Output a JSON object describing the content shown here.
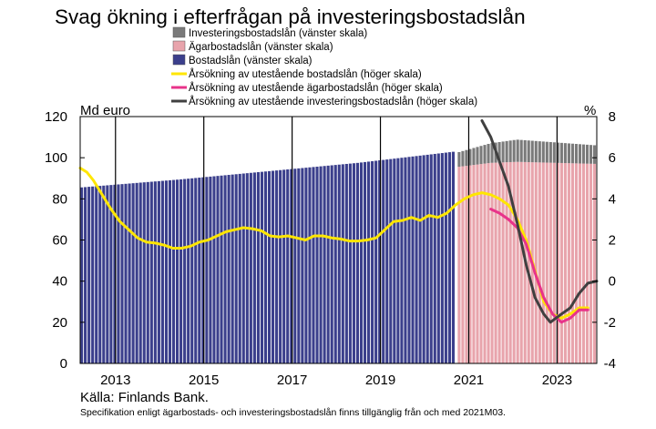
{
  "chart_data": {
    "type": "bar",
    "title": "Svag ökning i efterfrågan på investeringsbostadslån",
    "left_unit": "Md euro",
    "right_unit": "%",
    "left_ylim": [
      0,
      120
    ],
    "left_ticks": [
      0,
      20,
      40,
      60,
      80,
      100,
      120
    ],
    "right_ylim": [
      -4,
      8
    ],
    "right_ticks": [
      -4,
      -2,
      0,
      2,
      4,
      6,
      8
    ],
    "x_range": [
      2012.7,
      2024.4
    ],
    "x_ticks": [
      "2013",
      "2015",
      "2017",
      "2019",
      "2021",
      "2023"
    ],
    "grid": "vertical",
    "legend_placement": "top-left",
    "colors": {
      "investment_bar": "#7a7a7a",
      "owner_bar": "#e8a4ac",
      "housing_bar": "#3b3f8c",
      "growth_housing": "#ffe600",
      "growth_owner": "#e8338a",
      "growth_investment": "#404040"
    },
    "legend": [
      {
        "label": "Investeringsbostadslån (vänster skala)",
        "kind": "box",
        "color": "#7a7a7a"
      },
      {
        "label": "Ägarbostadslån (vänster skala)",
        "kind": "box",
        "color": "#e8a4ac"
      },
      {
        "label": "Bostadslån (vänster skala)",
        "kind": "box",
        "color": "#3b3f8c"
      },
      {
        "label": "Årsökning av utestående bostadslån (höger skala)",
        "kind": "line",
        "color": "#ffe600"
      },
      {
        "label": "Årsökning av utestående ägarbostadslån (höger skala)",
        "kind": "line",
        "color": "#e8338a"
      },
      {
        "label": "Årsökning av utestående investeringsbostadslån (höger skala)",
        "kind": "line",
        "color": "#404040"
      }
    ],
    "bars_housing": {
      "name": "Bostadslån (vänster skala)",
      "x_start": 2012.7,
      "x_end": 2021.2,
      "points": [
        [
          2012.7,
          85.5
        ],
        [
          2015.0,
          89.5
        ],
        [
          2017.0,
          93.5
        ],
        [
          2019.0,
          97.5
        ],
        [
          2021.2,
          103.0
        ]
      ]
    },
    "bars_split": {
      "x_start": 2021.25,
      "x_end": 2024.4,
      "owner": {
        "name": "Ägarbostadslån (vänster skala)",
        "points": [
          [
            2021.25,
            95.5
          ],
          [
            2022.0,
            97.5
          ],
          [
            2022.6,
            98.0
          ],
          [
            2024.4,
            97.0
          ]
        ]
      },
      "investment": {
        "name": "Investeringsbostadslån (vänster skala)",
        "points": [
          [
            2021.25,
            7.0
          ],
          [
            2022.0,
            9.5
          ],
          [
            2022.6,
            10.8
          ],
          [
            2024.4,
            9.0
          ]
        ]
      }
    },
    "series": [
      {
        "name": "Årsökning av utestående bostadslån (höger skala)",
        "color": "#ffe600",
        "points": [
          [
            2012.7,
            5.5
          ],
          [
            2012.85,
            5.3
          ],
          [
            2013.0,
            4.9
          ],
          [
            2013.2,
            4.2
          ],
          [
            2013.4,
            3.5
          ],
          [
            2013.6,
            2.9
          ],
          [
            2013.8,
            2.5
          ],
          [
            2014.0,
            2.1
          ],
          [
            2014.2,
            1.9
          ],
          [
            2014.4,
            1.85
          ],
          [
            2014.6,
            1.75
          ],
          [
            2014.8,
            1.6
          ],
          [
            2015.0,
            1.6
          ],
          [
            2015.2,
            1.7
          ],
          [
            2015.4,
            1.9
          ],
          [
            2015.6,
            2.0
          ],
          [
            2015.8,
            2.2
          ],
          [
            2016.0,
            2.4
          ],
          [
            2016.2,
            2.5
          ],
          [
            2016.4,
            2.6
          ],
          [
            2016.6,
            2.55
          ],
          [
            2016.8,
            2.45
          ],
          [
            2017.0,
            2.2
          ],
          [
            2017.2,
            2.15
          ],
          [
            2017.4,
            2.2
          ],
          [
            2017.6,
            2.1
          ],
          [
            2017.8,
            2.0
          ],
          [
            2018.0,
            2.2
          ],
          [
            2018.2,
            2.2
          ],
          [
            2018.4,
            2.1
          ],
          [
            2018.6,
            2.05
          ],
          [
            2018.8,
            1.95
          ],
          [
            2019.0,
            1.95
          ],
          [
            2019.2,
            2.0
          ],
          [
            2019.4,
            2.1
          ],
          [
            2019.6,
            2.5
          ],
          [
            2019.8,
            2.9
          ],
          [
            2020.0,
            2.95
          ],
          [
            2020.2,
            3.1
          ],
          [
            2020.4,
            2.95
          ],
          [
            2020.6,
            3.2
          ],
          [
            2020.8,
            3.1
          ],
          [
            2021.0,
            3.3
          ],
          [
            2021.2,
            3.7
          ],
          [
            2021.4,
            4.0
          ],
          [
            2021.6,
            4.2
          ],
          [
            2021.8,
            4.3
          ],
          [
            2022.0,
            4.2
          ],
          [
            2022.2,
            4.0
          ],
          [
            2022.4,
            3.7
          ],
          [
            2022.6,
            3.0
          ],
          [
            2022.8,
            2.0
          ],
          [
            2023.0,
            0.5
          ],
          [
            2023.2,
            -1.0
          ],
          [
            2023.4,
            -1.6
          ],
          [
            2023.6,
            -1.8
          ],
          [
            2023.8,
            -1.6
          ],
          [
            2024.0,
            -1.3
          ],
          [
            2024.2,
            -1.3
          ]
        ]
      },
      {
        "name": "Årsökning av utestående ägarbostadslån (höger skala)",
        "color": "#e8338a",
        "points": [
          [
            2022.0,
            3.5
          ],
          [
            2022.2,
            3.3
          ],
          [
            2022.4,
            3.0
          ],
          [
            2022.6,
            2.6
          ],
          [
            2022.8,
            1.8
          ],
          [
            2023.0,
            0.4
          ],
          [
            2023.2,
            -0.8
          ],
          [
            2023.4,
            -1.6
          ],
          [
            2023.6,
            -2.0
          ],
          [
            2023.8,
            -1.8
          ],
          [
            2024.0,
            -1.4
          ],
          [
            2024.2,
            -1.4
          ]
        ]
      },
      {
        "name": "Årsökning av utestående investeringsbostadslån (höger skala)",
        "color": "#404040",
        "points": [
          [
            2021.8,
            7.8
          ],
          [
            2022.0,
            7.0
          ],
          [
            2022.2,
            5.8
          ],
          [
            2022.4,
            4.6
          ],
          [
            2022.6,
            2.8
          ],
          [
            2022.8,
            0.8
          ],
          [
            2023.0,
            -0.8
          ],
          [
            2023.2,
            -1.6
          ],
          [
            2023.35,
            -2.0
          ],
          [
            2023.6,
            -1.6
          ],
          [
            2023.8,
            -1.3
          ],
          [
            2024.0,
            -0.6
          ],
          [
            2024.2,
            -0.1
          ],
          [
            2024.4,
            0.0
          ]
        ]
      }
    ],
    "source": "Källa: Finlands Bank.",
    "note": "Specifikation enligt ägarbostads- och investeringsbostadslån finns tillgänglig från och med 2021M03."
  }
}
